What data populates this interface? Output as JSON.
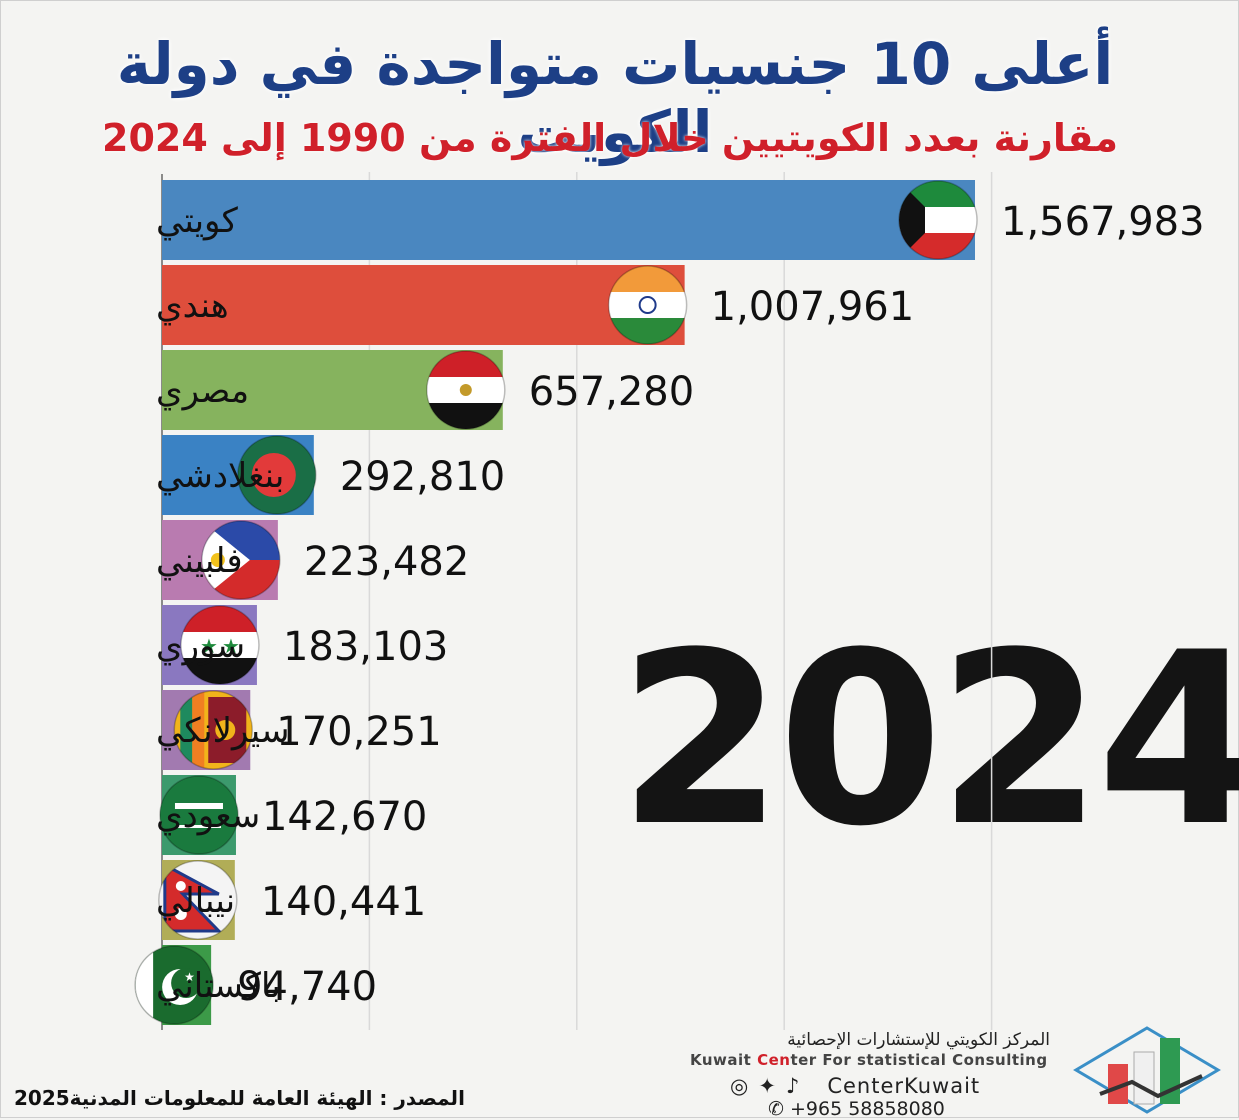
{
  "title": "أعلى 10 جنسيات متواجدة في دولة الكويت",
  "subtitle": "مقارنة بعدد الكويتيين خلال الفترة من 1990 إلى 2024",
  "year_label": "2024",
  "chart_data": {
    "type": "bar",
    "orientation": "horizontal",
    "categories": [
      "كويتي",
      "هندي",
      "مصري",
      "بنغلادشي",
      "فلبيني",
      "سوري",
      "سيرلانكي",
      "سعودي",
      "نيبالي",
      "باكستاني"
    ],
    "values": [
      1567983,
      1007961,
      657280,
      292810,
      223482,
      183103,
      170251,
      142670,
      140441,
      94740
    ],
    "value_labels": [
      "1,567,983",
      "1,007,961",
      "657,280",
      "292,810",
      "223,482",
      "183,103",
      "170,251",
      "142,670",
      "140,441",
      "94,740"
    ],
    "colors": [
      "#4a87c0",
      "#de4e3c",
      "#86b35e",
      "#3a82c4",
      "#b97bb0",
      "#8a78c0",
      "#a27ab0",
      "#3c9a6d",
      "#b1ad57",
      "#3c9a48"
    ],
    "flags": [
      "kuwait-flag",
      "india-flag",
      "egypt-flag",
      "bangladesh-flag",
      "philippines-flag",
      "syria-flag",
      "srilanka-flag",
      "saudi-flag",
      "nepal-flag",
      "pakistan-flag"
    ],
    "xlim": [
      0,
      1600000
    ],
    "grid": true,
    "legend": "none"
  },
  "footer": {
    "org_name_ar": "المركز الكويتي للإستشارات الإحصائية",
    "org_name_en_prefix": "Kuwait ",
    "org_name_en_red": "Cen",
    "org_name_en_suffix": "ter For statistical Consulting",
    "handle": "CenterKuwait",
    "phone": "+965 58858080",
    "source": "المصدر : الهيئة العامة للمعلومات المدنية2025"
  }
}
